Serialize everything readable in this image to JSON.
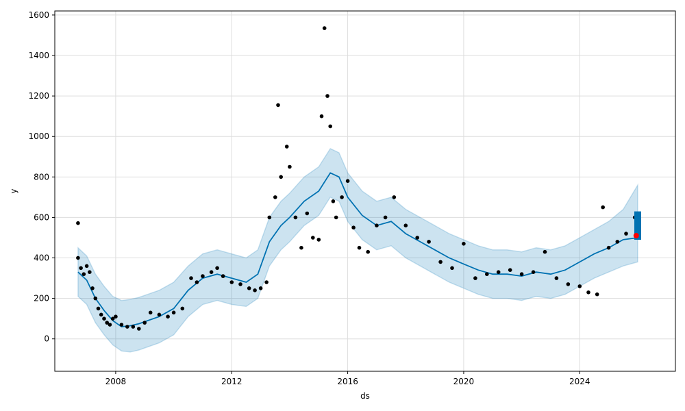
{
  "chart_data": {
    "type": "scatter",
    "xlabel": "ds",
    "ylabel": "y",
    "xlim": [
      2005.9,
      2027.3
    ],
    "ylim": [
      -160,
      1620
    ],
    "grid": true,
    "x_ticks": [
      2008,
      2012,
      2016,
      2020,
      2024
    ],
    "x_tick_labels": [
      "2008",
      "2012",
      "2016",
      "2020",
      "2024"
    ],
    "y_ticks": [
      0,
      200,
      400,
      600,
      800,
      1000,
      1200,
      1400,
      1600
    ],
    "y_tick_labels": [
      "0",
      "200",
      "400",
      "600",
      "800",
      "1000",
      "1200",
      "1400",
      "1600"
    ],
    "colors": {
      "observed": "#000000",
      "forecast_line": "#0072B2",
      "uncertainty_band": "#0072B2",
      "highlight_point": "#ff0000",
      "grid": "#dddddd"
    },
    "series": [
      {
        "kind": "forecast_line",
        "x": [
          2006.7,
          2007.0,
          2007.3,
          2007.6,
          2007.9,
          2008.2,
          2008.5,
          2008.8,
          2009.1,
          2009.5,
          2010.0,
          2010.5,
          2011.0,
          2011.5,
          2012.0,
          2012.5,
          2012.9,
          2013.3,
          2013.7,
          2014.0,
          2014.5,
          2015.0,
          2015.4,
          2015.7,
          2016.0,
          2016.5,
          2017.0,
          2017.5,
          2018.0,
          2018.5,
          2019.0,
          2019.5,
          2020.0,
          2020.5,
          2021.0,
          2021.5,
          2022.0,
          2022.5,
          2023.0,
          2023.5,
          2024.0,
          2024.5,
          2025.0,
          2025.5,
          2026.0
        ],
        "y": [
          330,
          290,
          200,
          140,
          90,
          60,
          65,
          75,
          90,
          110,
          150,
          240,
          300,
          320,
          300,
          280,
          320,
          480,
          560,
          600,
          680,
          730,
          820,
          800,
          700,
          610,
          560,
          580,
          520,
          480,
          440,
          400,
          370,
          340,
          320,
          320,
          310,
          330,
          320,
          340,
          380,
          420,
          450,
          490,
          500
        ]
      },
      {
        "kind": "uncertainty_band",
        "x": [
          2006.7,
          2007.0,
          2007.3,
          2007.6,
          2007.9,
          2008.2,
          2008.5,
          2008.8,
          2009.1,
          2009.5,
          2010.0,
          2010.5,
          2011.0,
          2011.5,
          2012.0,
          2012.5,
          2012.9,
          2013.3,
          2013.7,
          2014.0,
          2014.5,
          2015.0,
          2015.4,
          2015.7,
          2016.0,
          2016.5,
          2017.0,
          2017.5,
          2018.0,
          2018.5,
          2019.0,
          2019.5,
          2020.0,
          2020.5,
          2021.0,
          2021.5,
          2022.0,
          2022.5,
          2023.0,
          2023.5,
          2024.0,
          2024.5,
          2025.0,
          2025.5,
          2026.0
        ],
        "upper": [
          450,
          410,
          320,
          260,
          210,
          190,
          195,
          205,
          220,
          240,
          280,
          360,
          420,
          440,
          420,
          400,
          440,
          600,
          680,
          720,
          800,
          850,
          940,
          920,
          820,
          730,
          680,
          700,
          640,
          600,
          560,
          520,
          490,
          460,
          440,
          440,
          430,
          450,
          440,
          460,
          500,
          540,
          580,
          640,
          760
        ],
        "lower": [
          210,
          170,
          80,
          20,
          -30,
          -60,
          -65,
          -55,
          -40,
          -20,
          20,
          110,
          170,
          190,
          170,
          160,
          200,
          360,
          440,
          480,
          560,
          610,
          700,
          680,
          580,
          490,
          440,
          460,
          400,
          360,
          320,
          280,
          250,
          220,
          200,
          200,
          190,
          210,
          200,
          220,
          260,
          300,
          330,
          360,
          380
        ]
      },
      {
        "kind": "observed",
        "x": [
          2006.7,
          2006.7,
          2006.8,
          2006.9,
          2007.0,
          2007.1,
          2007.2,
          2007.3,
          2007.4,
          2007.5,
          2007.6,
          2007.7,
          2007.8,
          2007.9,
          2008.0,
          2008.2,
          2008.4,
          2008.6,
          2008.8,
          2009.0,
          2009.2,
          2009.5,
          2009.8,
          2010.0,
          2010.3,
          2010.6,
          2010.8,
          2011.0,
          2011.3,
          2011.5,
          2011.7,
          2012.0,
          2012.3,
          2012.6,
          2012.8,
          2013.0,
          2013.2,
          2013.3,
          2013.5,
          2013.6,
          2013.7,
          2013.9,
          2014.0,
          2014.2,
          2014.4,
          2014.6,
          2014.8,
          2015.0,
          2015.1,
          2015.2,
          2015.3,
          2015.4,
          2015.5,
          2015.6,
          2015.8,
          2016.0,
          2016.2,
          2016.4,
          2016.7,
          2017.0,
          2017.3,
          2017.6,
          2018.0,
          2018.4,
          2018.8,
          2019.2,
          2019.6,
          2020.0,
          2020.4,
          2020.8,
          2021.2,
          2021.6,
          2022.0,
          2022.4,
          2022.8,
          2023.2,
          2023.6,
          2024.0,
          2024.3,
          2024.6,
          2024.8,
          2025.0,
          2025.3,
          2025.6,
          2025.9
        ],
        "y": [
          572,
          400,
          350,
          320,
          360,
          330,
          250,
          200,
          150,
          120,
          100,
          80,
          70,
          100,
          110,
          70,
          60,
          60,
          50,
          80,
          130,
          120,
          110,
          130,
          150,
          300,
          280,
          310,
          330,
          350,
          310,
          280,
          270,
          250,
          240,
          250,
          280,
          600,
          700,
          1155,
          800,
          950,
          850,
          600,
          450,
          620,
          500,
          490,
          1100,
          1535,
          1200,
          1050,
          680,
          600,
          700,
          780,
          550,
          450,
          430,
          560,
          600,
          700,
          560,
          500,
          480,
          380,
          350,
          470,
          300,
          320,
          330,
          340,
          320,
          330,
          430,
          300,
          270,
          260,
          230,
          220,
          650,
          450,
          480,
          520,
          600
        ]
      },
      {
        "kind": "future_forecast_bar",
        "x": [
          2026.0
        ],
        "upper": [
          630
        ],
        "lower": [
          490
        ]
      }
    ],
    "highlight_point": {
      "x": 2025.95,
      "y": 510
    }
  }
}
